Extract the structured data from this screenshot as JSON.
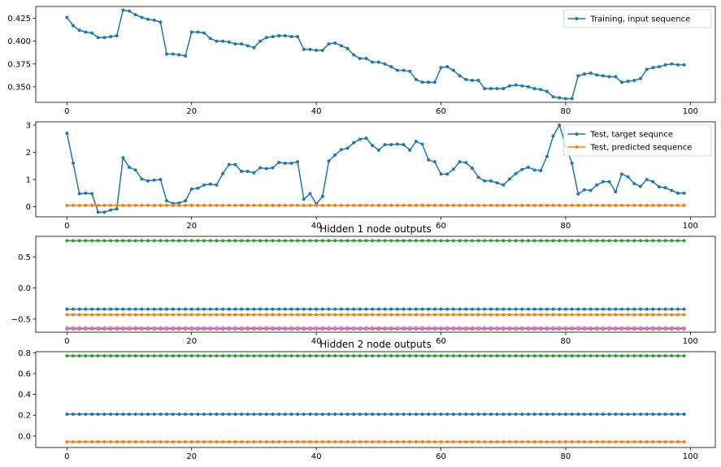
{
  "colors": {
    "blue": "#1f77b4",
    "orange": "#ff7f0e",
    "green": "#2ca02c",
    "red": "#d62728",
    "purple": "#9467bd",
    "pink": "#e377c2"
  },
  "chart_data": [
    {
      "type": "line",
      "title": "",
      "xlabel": "",
      "ylabel": "",
      "xlim": [
        -5,
        104
      ],
      "ylim": [
        0.333,
        0.438
      ],
      "xticks": [
        0,
        20,
        40,
        60,
        80,
        100
      ],
      "yticks": [
        0.35,
        0.375,
        0.4,
        0.425
      ],
      "ytick_labels": [
        "0.350",
        "0.375",
        "0.400",
        "0.425"
      ],
      "legend": "top-right",
      "series": [
        {
          "name": "Training, input sequence",
          "color": "blue",
          "x_start": 0,
          "values": [
            0.426,
            0.417,
            0.412,
            0.41,
            0.409,
            0.404,
            0.404,
            0.405,
            0.406,
            0.434,
            0.433,
            0.429,
            0.426,
            0.424,
            0.423,
            0.421,
            0.386,
            0.386,
            0.385,
            0.384,
            0.41,
            0.41,
            0.409,
            0.403,
            0.4,
            0.4,
            0.399,
            0.397,
            0.397,
            0.395,
            0.393,
            0.4,
            0.404,
            0.405,
            0.406,
            0.406,
            0.405,
            0.405,
            0.391,
            0.391,
            0.39,
            0.39,
            0.397,
            0.398,
            0.395,
            0.392,
            0.385,
            0.381,
            0.381,
            0.377,
            0.377,
            0.375,
            0.372,
            0.368,
            0.368,
            0.367,
            0.358,
            0.355,
            0.355,
            0.355,
            0.371,
            0.372,
            0.368,
            0.362,
            0.358,
            0.357,
            0.357,
            0.348,
            0.348,
            0.348,
            0.348,
            0.351,
            0.352,
            0.351,
            0.35,
            0.348,
            0.347,
            0.345,
            0.339,
            0.338,
            0.337,
            0.337,
            0.362,
            0.364,
            0.365,
            0.363,
            0.362,
            0.361,
            0.361,
            0.355,
            0.356,
            0.357,
            0.359,
            0.369,
            0.371,
            0.372,
            0.374,
            0.375,
            0.374,
            0.374
          ]
        }
      ]
    },
    {
      "type": "line",
      "title": "",
      "xlabel": "",
      "ylabel": "",
      "xlim": [
        -5,
        104
      ],
      "ylim": [
        -0.37,
        3.12
      ],
      "xticks": [
        0,
        20,
        40,
        60,
        80,
        100
      ],
      "yticks": [
        0,
        1,
        2,
        3
      ],
      "ytick_labels": [
        "0",
        "1",
        "2",
        "3"
      ],
      "legend": "top-right",
      "series": [
        {
          "name": "Test, target sequnce",
          "color": "blue",
          "x_start": 0,
          "values": [
            2.7,
            1.6,
            0.48,
            0.5,
            0.48,
            -0.2,
            -0.2,
            -0.12,
            -0.08,
            1.8,
            1.45,
            1.35,
            1.02,
            0.95,
            0.98,
            1.0,
            0.22,
            0.12,
            0.14,
            0.22,
            0.65,
            0.68,
            0.8,
            0.83,
            0.8,
            1.22,
            1.55,
            1.55,
            1.3,
            1.3,
            1.25,
            1.43,
            1.4,
            1.43,
            1.63,
            1.6,
            1.6,
            1.65,
            0.28,
            0.48,
            0.1,
            0.38,
            1.68,
            1.9,
            2.1,
            2.15,
            2.35,
            2.48,
            2.52,
            2.25,
            2.08,
            2.28,
            2.28,
            2.3,
            2.28,
            2.08,
            2.4,
            2.3,
            1.72,
            1.65,
            1.2,
            1.2,
            1.38,
            1.65,
            1.62,
            1.42,
            1.08,
            0.95,
            0.95,
            0.88,
            0.8,
            1.02,
            1.22,
            1.37,
            1.45,
            1.35,
            1.33,
            1.85,
            2.6,
            3.0,
            2.25,
            1.6,
            0.47,
            0.62,
            0.6,
            0.8,
            0.92,
            0.92,
            0.55,
            1.2,
            1.1,
            0.85,
            0.75,
            1.0,
            0.92,
            0.73,
            0.7,
            0.6,
            0.5,
            0.5
          ]
        },
        {
          "name": "Test, predicted sequence",
          "color": "orange",
          "x_start": 0,
          "values": [
            0.05,
            0.05,
            0.05,
            0.05,
            0.05,
            0.05,
            0.05,
            0.05,
            0.05,
            0.05,
            0.05,
            0.05,
            0.05,
            0.05,
            0.05,
            0.05,
            0.05,
            0.05,
            0.05,
            0.05,
            0.05,
            0.05,
            0.05,
            0.05,
            0.05,
            0.05,
            0.05,
            0.05,
            0.05,
            0.05,
            0.05,
            0.05,
            0.05,
            0.05,
            0.05,
            0.05,
            0.05,
            0.05,
            0.05,
            0.05,
            0.05,
            0.05,
            0.05,
            0.05,
            0.05,
            0.05,
            0.05,
            0.05,
            0.05,
            0.05,
            0.05,
            0.05,
            0.05,
            0.05,
            0.05,
            0.05,
            0.05,
            0.05,
            0.05,
            0.05,
            0.05,
            0.05,
            0.05,
            0.05,
            0.05,
            0.05,
            0.05,
            0.05,
            0.05,
            0.05,
            0.05,
            0.05,
            0.05,
            0.05,
            0.05,
            0.05,
            0.05,
            0.05,
            0.05,
            0.05,
            0.05,
            0.05,
            0.05,
            0.05,
            0.05,
            0.05,
            0.05,
            0.05,
            0.05,
            0.05,
            0.05,
            0.05,
            0.05,
            0.05,
            0.05,
            0.05,
            0.05,
            0.05,
            0.05,
            0.05
          ]
        }
      ]
    },
    {
      "type": "line",
      "title": "Hidden 1 node outputs",
      "xlabel": "",
      "ylabel": "",
      "xlim": [
        -5,
        104
      ],
      "ylim": [
        -0.71,
        0.83
      ],
      "xticks": [
        0,
        20,
        40,
        60,
        80,
        100
      ],
      "yticks": [
        -0.5,
        0.0,
        0.5
      ],
      "ytick_labels": [
        "−0.5",
        "0.0",
        "0.5"
      ],
      "legend": "none",
      "series": [
        {
          "color": "blue",
          "constant": -0.34,
          "n": 100
        },
        {
          "color": "orange",
          "constant": -0.43,
          "n": 100
        },
        {
          "color": "green",
          "constant": 0.76,
          "n": 100
        },
        {
          "color": "red",
          "constant": -0.655,
          "n": 100
        },
        {
          "color": "purple",
          "constant": -0.645,
          "n": 100
        },
        {
          "color": "pink",
          "constant": -0.64,
          "n": 100
        }
      ]
    },
    {
      "type": "line",
      "title": "Hidden 2 node outputs",
      "xlabel": "",
      "ylabel": "",
      "xlim": [
        -5,
        104
      ],
      "ylim": [
        -0.11,
        0.81
      ],
      "xticks": [
        0,
        20,
        40,
        60,
        80,
        100
      ],
      "yticks": [
        0.0,
        0.2,
        0.4,
        0.6,
        0.8
      ],
      "ytick_labels": [
        "0.0",
        "0.2",
        "0.4",
        "0.6",
        "0.8"
      ],
      "legend": "none",
      "series": [
        {
          "color": "blue",
          "constant": 0.21,
          "n": 100
        },
        {
          "color": "orange",
          "constant": -0.055,
          "n": 100
        },
        {
          "color": "green",
          "constant": 0.77,
          "n": 100
        }
      ]
    }
  ]
}
